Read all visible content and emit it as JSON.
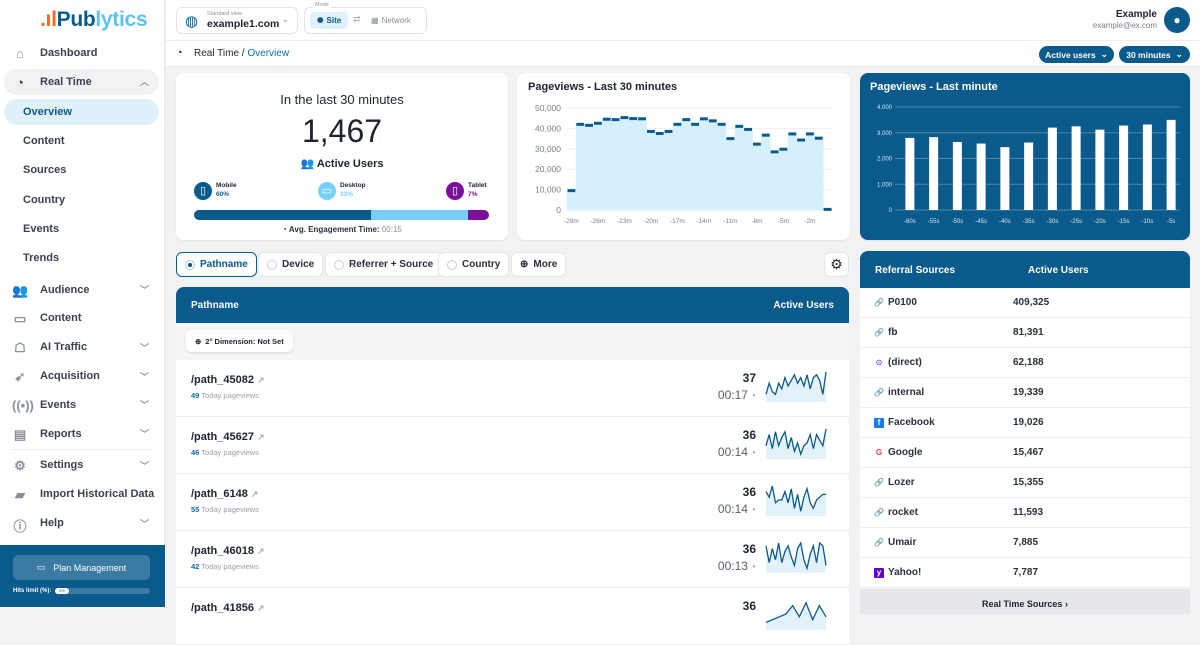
{
  "brand": {
    "logo": "Publytics"
  },
  "sidebar": {
    "items": [
      {
        "label": "Dashboard",
        "icon": "home-icon"
      },
      {
        "label": "Real Time",
        "icon": "clock-icon",
        "expanded": true,
        "children": [
          "Overview",
          "Content",
          "Sources",
          "Country",
          "Events",
          "Trends"
        ],
        "active_child": "Overview"
      },
      {
        "label": "Audience",
        "icon": "users-icon"
      },
      {
        "label": "Content",
        "icon": "browser-icon"
      },
      {
        "label": "AI Traffic",
        "icon": "robot-icon"
      },
      {
        "label": "Acquisition",
        "icon": "pointer-icon"
      },
      {
        "label": "Events",
        "icon": "broadcast-icon"
      },
      {
        "label": "Reports",
        "icon": "report-icon"
      },
      {
        "label": "Settings",
        "icon": "gear-icon"
      },
      {
        "label": "Import Historical Data",
        "icon": "folder-import-icon"
      },
      {
        "label": "Help",
        "icon": "info-icon"
      }
    ],
    "plan_button": "Plan Management",
    "hits_label": "Hits limit (%):",
    "hits_value": "5%",
    "hits_percent": 5
  },
  "topbar": {
    "site_caption": "Standard view",
    "site": "example1.com",
    "mode_caption": "Mode",
    "mode_site": "Site",
    "mode_network": "Network",
    "user_name": "Example",
    "user_email": "example@ex.com"
  },
  "breadcrumb": {
    "section": "Real Time",
    "separator": "/",
    "page": "Overview"
  },
  "filters": {
    "metric": "Active users",
    "range": "30 minutes"
  },
  "summary": {
    "title": "In the last 30 minutes",
    "count": "1,467",
    "label": "Active Users",
    "devices": [
      {
        "name": "Mobile",
        "pct": "60%",
        "value": 60,
        "color": "#0a5a8c"
      },
      {
        "name": "Desktop",
        "pct": "33%",
        "value": 33,
        "color": "#78d0fa"
      },
      {
        "name": "Tablet",
        "pct": "7%",
        "value": 7,
        "color": "#7b0f9a"
      }
    ],
    "engagement_label": "Avg. Engagement Time:",
    "engagement_value": "00:15"
  },
  "chart_data": [
    {
      "type": "bar",
      "title": "Pageviews - Last 30 minutes",
      "x": [
        "-29m",
        "-28m",
        "-27m",
        "-26m",
        "-25m",
        "-24m",
        "-23m",
        "-22m",
        "-21m",
        "-20m",
        "-19m",
        "-18m",
        "-17m",
        "-16m",
        "-15m",
        "-14m",
        "-13m",
        "-12m",
        "-11m",
        "-10m",
        "-9m",
        "-8m",
        "-7m",
        "-6m",
        "-5m",
        "-4m",
        "-3m",
        "-2m",
        "-1m",
        "0m"
      ],
      "values": [
        9500,
        42000,
        41500,
        42500,
        44500,
        44300,
        45300,
        44800,
        44700,
        38500,
        37500,
        38500,
        42000,
        44300,
        42000,
        44700,
        43700,
        42000,
        35000,
        41000,
        39500,
        32300,
        36700,
        28500,
        29800,
        37300,
        34300,
        37300,
        35200,
        300
      ],
      "xticks": [
        "-29m",
        "-26m",
        "-23m",
        "-20m",
        "-17m",
        "-14m",
        "-11m",
        "-8m",
        "-5m",
        "-2m"
      ],
      "yticks": [
        "0",
        "10,000",
        "20,000",
        "30,000",
        "40,000",
        "50,000"
      ],
      "ylim": [
        0,
        50000
      ],
      "grid": true
    },
    {
      "type": "bar",
      "title": "Pageviews - Last minute",
      "categories": [
        "-60s",
        "-55s",
        "-50s",
        "-45s",
        "-40s",
        "-35s",
        "-30s",
        "-25s",
        "-20s",
        "-15s",
        "-10s",
        "-5s"
      ],
      "values": [
        2800,
        2830,
        2640,
        2580,
        2440,
        2620,
        3200,
        3250,
        3120,
        3280,
        3320,
        3500
      ],
      "yticks": [
        "0",
        "1,000",
        "2,000",
        "3,000",
        "4,000"
      ],
      "ylim": [
        0,
        4000
      ],
      "grid": true
    }
  ],
  "tabs": [
    {
      "label": "Pathname",
      "selected": true
    },
    {
      "label": "Device"
    },
    {
      "label": "Referrer + Source"
    },
    {
      "label": "Country"
    },
    {
      "label": "More"
    }
  ],
  "paths": {
    "col1": "Pathname",
    "col2": "Active Users",
    "dimension": "2° Dimension: Not Set",
    "today_suffix": "Today pageviews",
    "rows": [
      {
        "path": "/path_45082",
        "today": "49",
        "users": "37",
        "time": "00:17",
        "spark": [
          2,
          6,
          3,
          2,
          6,
          4,
          8,
          5,
          7,
          9,
          6,
          8,
          5,
          9,
          4,
          8,
          9,
          7,
          2,
          10
        ]
      },
      {
        "path": "/path_45627",
        "today": "46",
        "users": "36",
        "time": "00:14",
        "spark": [
          4,
          8,
          3,
          9,
          4,
          7,
          9,
          3,
          7,
          2,
          5,
          1,
          4,
          5,
          8,
          3,
          8,
          6,
          4,
          10
        ]
      },
      {
        "path": "/path_6148",
        "today": "55",
        "users": "36",
        "time": "00:14",
        "spark": [
          8,
          6,
          10,
          4,
          5,
          5,
          8,
          4,
          9,
          2,
          7,
          1,
          6,
          9,
          4,
          2,
          5,
          6,
          7,
          7
        ]
      },
      {
        "path": "/path_46018",
        "today": "42",
        "users": "36",
        "time": "00:13",
        "spark": [
          9,
          3,
          8,
          4,
          10,
          3,
          7,
          9,
          5,
          2,
          8,
          10,
          4,
          1,
          6,
          9,
          3,
          10,
          9,
          2
        ]
      },
      {
        "path": "/path_41856",
        "today": "",
        "users": "36",
        "time": "",
        "spark": [
          2,
          3,
          4,
          5,
          8,
          4,
          9,
          3,
          8,
          4
        ]
      }
    ]
  },
  "referrals": {
    "col1": "Referral Sources",
    "col2": "Active Users",
    "footer": "Real Time Sources",
    "rows": [
      {
        "name": "P0100",
        "users": "409,325",
        "icon": "link-icon"
      },
      {
        "name": "fb",
        "users": "81,391",
        "icon": "link-icon"
      },
      {
        "name": "(direct)",
        "users": "62,188",
        "icon": "direct-icon"
      },
      {
        "name": "internal",
        "users": "19,339",
        "icon": "link-icon"
      },
      {
        "name": "Facebook",
        "users": "19,026",
        "icon": "facebook-icon"
      },
      {
        "name": "Google",
        "users": "15,467",
        "icon": "google-icon"
      },
      {
        "name": "Lozer",
        "users": "15,355",
        "icon": "link-icon"
      },
      {
        "name": "rocket",
        "users": "11,593",
        "icon": "link-icon"
      },
      {
        "name": "Umair",
        "users": "7,885",
        "icon": "link-icon"
      },
      {
        "name": "Yahoo!",
        "users": "7,787",
        "icon": "yahoo-icon"
      }
    ]
  },
  "colors": {
    "brand": "#0a5a8c",
    "accent_light": "#78d0fa",
    "tablet": "#7b0f9a",
    "background": "#f1f2f4"
  }
}
